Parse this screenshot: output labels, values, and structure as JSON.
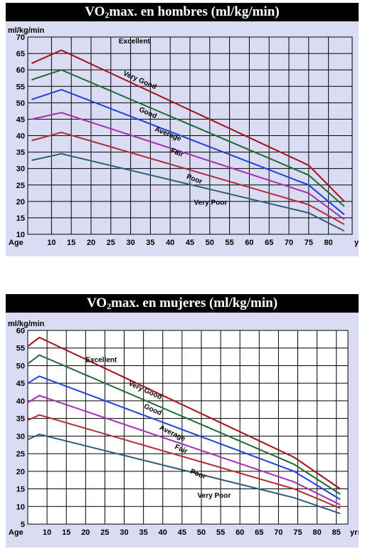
{
  "colors": {
    "excellent": "#a50e1a",
    "very_good": "#1f6b34",
    "good": "#1f43d8",
    "average": "#a62fb5",
    "fair": "#b22d38",
    "poor": "#2d5f79",
    "very_poor": "#2d5f79"
  },
  "chart_data": [
    {
      "type": "line",
      "title_main": "VO",
      "title_sub": "2",
      "title_rest": "max. en hombres (ml/kg/min)",
      "ylabel": "ml/kg/min",
      "xlabel_left": "Age",
      "xlabel_right": "yrs",
      "x_ticks": [
        "10",
        "15",
        "20",
        "25",
        "30",
        "35",
        "40",
        "45",
        "50",
        "55",
        "60",
        "65",
        "70",
        "75",
        "80"
      ],
      "y_ticks": [
        "10",
        "15",
        "20",
        "25",
        "30",
        "35",
        "40",
        "45",
        "50",
        "55",
        "60",
        "65",
        "70"
      ],
      "xlim": [
        4,
        86
      ],
      "ylim": [
        10,
        70
      ],
      "grid": true,
      "x": [
        5,
        12.5,
        75,
        84
      ],
      "series": [
        {
          "name": "Excellent",
          "key": "excellent",
          "values": [
            62,
            66,
            31,
            20
          ],
          "label_x": 27,
          "label_y": 68,
          "label_rot": 0
        },
        {
          "name": "Very Good",
          "key": "very_good",
          "values": [
            57,
            60,
            28,
            18.5
          ],
          "label_x": 28,
          "label_y": 58.5,
          "label_rot": 24
        },
        {
          "name": "Good",
          "key": "good",
          "values": [
            51,
            54,
            25,
            16
          ],
          "label_x": 32,
          "label_y": 47.5,
          "label_rot": 24
        },
        {
          "name": "Average",
          "key": "average",
          "values": [
            45,
            47,
            22.5,
            14.5
          ],
          "label_x": 36,
          "label_y": 41.5,
          "label_rot": 22
        },
        {
          "name": "Fair",
          "key": "fair",
          "values": [
            38.5,
            41,
            19,
            13
          ],
          "label_x": 40,
          "label_y": 35,
          "label_rot": 22
        },
        {
          "name": "Poor",
          "key": "poor",
          "values": [
            32.5,
            34.5,
            16.5,
            11
          ],
          "label_x": 44,
          "label_y": 27,
          "label_rot": 20
        },
        {
          "name": "Very Poor",
          "key": "very_poor",
          "values": null,
          "label_x": 46,
          "label_y": 19,
          "label_rot": 0
        }
      ]
    },
    {
      "type": "line",
      "title_main": "VO",
      "title_sub": "2",
      "title_rest": "max. en mujeres (ml/kg/min)",
      "ylabel": "ml/kg/min",
      "xlabel_left": "Age",
      "xlabel_right": "yrs",
      "x_ticks": [
        "10",
        "15",
        "20",
        "25",
        "30",
        "35",
        "40",
        "45",
        "50",
        "55",
        "60",
        "65",
        "70",
        "75",
        "80",
        "85"
      ],
      "y_ticks": [
        "5",
        "10",
        "15",
        "20",
        "25",
        "30",
        "35",
        "40",
        "45",
        "50",
        "55",
        "60"
      ],
      "xlim": [
        5,
        88
      ],
      "ylim": [
        5,
        60
      ],
      "grid": true,
      "x": [
        5,
        8,
        74,
        86
      ],
      "series": [
        {
          "name": "Excellent",
          "key": "excellent",
          "values": [
            55.5,
            58,
            24,
            15
          ],
          "label_x": 20,
          "label_y": 51,
          "label_rot": 0
        },
        {
          "name": "Very Good",
          "key": "very_good",
          "values": [
            50.5,
            53,
            22,
            13.5
          ],
          "label_x": 31,
          "label_y": 44.5,
          "label_rot": 24
        },
        {
          "name": "Good",
          "key": "good",
          "values": [
            45,
            47,
            20,
            12
          ],
          "label_x": 35,
          "label_y": 38,
          "label_rot": 24
        },
        {
          "name": "Average",
          "key": "average",
          "values": [
            39.5,
            41.5,
            17,
            10.5
          ],
          "label_x": 39,
          "label_y": 32,
          "label_rot": 26
        },
        {
          "name": "Fair",
          "key": "fair",
          "values": [
            34.5,
            36,
            15,
            9.5
          ],
          "label_x": 43,
          "label_y": 26.5,
          "label_rot": 24
        },
        {
          "name": "Poor",
          "key": "poor",
          "values": [
            29,
            30.5,
            12.5,
            8
          ],
          "label_x": 47,
          "label_y": 19.5,
          "label_rot": 22
        },
        {
          "name": "Very Poor",
          "key": "very_poor",
          "values": null,
          "label_x": 49,
          "label_y": 12.5,
          "label_rot": 0
        }
      ]
    }
  ]
}
